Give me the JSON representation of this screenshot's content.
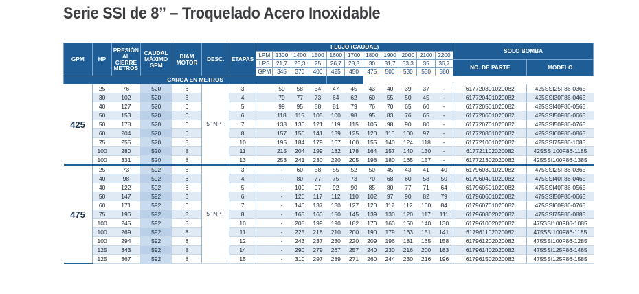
{
  "title": "Serie SSI de 8” – Troquelado Acero Inoxidable",
  "headers": {
    "gpm": "GPM",
    "hp": "HP",
    "presion": "PRESIÓN AL CIERRE METROS",
    "caudal": "CAUDAL MÁXIMO GPM",
    "diam": "DIAM MOTOR",
    "desc": "DESC.",
    "etapas": "ETAPAS",
    "flujo": "FLUJO (CAUDAL)",
    "carga": "CARGA EN METROS",
    "solo_bomba": "SOLO BOMBA",
    "no_parte": "NO. DE PARTE",
    "modelo": "MODELO"
  },
  "flow_rows": [
    {
      "unit": "LPM",
      "values": [
        "1300",
        "1400",
        "1500",
        "1600",
        "1700",
        "1800",
        "1900",
        "2000",
        "2100",
        "2200"
      ]
    },
    {
      "unit": "LPS",
      "values": [
        "21,7",
        "23,3",
        "25",
        "26,7",
        "28,3",
        "30",
        "31,7",
        "33,3",
        "35",
        "36,7"
      ]
    },
    {
      "unit": "GPM",
      "values": [
        "345",
        "370",
        "400",
        "425",
        "450",
        "475",
        "500",
        "530",
        "550",
        "580"
      ]
    }
  ],
  "groups": [
    {
      "gpm": "425",
      "desc": "5” NPT",
      "rows": [
        {
          "hp": "25",
          "presion": "76",
          "caudal": "520",
          "diam": "6",
          "etapas": "3",
          "carga": [
            "59",
            "58",
            "54",
            "47",
            "45",
            "43",
            "40",
            "39",
            "37",
            "-"
          ],
          "parte": "617720301020082",
          "modelo": "425SSI25F86-0365"
        },
        {
          "hp": "30",
          "presion": "102",
          "caudal": "520",
          "diam": "6",
          "etapas": "4",
          "carga": [
            "79",
            "77",
            "73",
            "64",
            "62",
            "60",
            "55",
            "50",
            "45",
            "-"
          ],
          "parte": "617720401020082",
          "modelo": "425SSI30F86-0465"
        },
        {
          "hp": "40",
          "presion": "127",
          "caudal": "520",
          "diam": "6",
          "etapas": "5",
          "carga": [
            "99",
            "95",
            "88",
            "81",
            "79",
            "76",
            "70",
            "65",
            "60",
            "-"
          ],
          "parte": "617720501020082",
          "modelo": "425SSI40F86-0565"
        },
        {
          "hp": "50",
          "presion": "153",
          "caudal": "520",
          "diam": "6",
          "etapas": "6",
          "carga": [
            "118",
            "115",
            "105",
            "100",
            "98",
            "95",
            "83",
            "76",
            "65",
            "-"
          ],
          "parte": "617720601020082",
          "modelo": "425SSI50F86-0665"
        },
        {
          "hp": "50",
          "presion": "178",
          "caudal": "520",
          "diam": "6",
          "etapas": "7",
          "carga": [
            "138",
            "130",
            "121",
            "119",
            "115",
            "105",
            "98",
            "90",
            "80",
            "-"
          ],
          "parte": "617720701020082",
          "modelo": "425SSI50F86-0765"
        },
        {
          "hp": "60",
          "presion": "204",
          "caudal": "520",
          "diam": "6",
          "etapas": "8",
          "carga": [
            "157",
            "150",
            "141",
            "139",
            "125",
            "120",
            "110",
            "100",
            "97",
            "-"
          ],
          "parte": "617720801020082",
          "modelo": "425SSI60F86-0865"
        },
        {
          "hp": "75",
          "presion": "255",
          "caudal": "520",
          "diam": "8",
          "etapas": "10",
          "carga": [
            "195",
            "184",
            "179",
            "167",
            "160",
            "155",
            "140",
            "124",
            "118",
            "-"
          ],
          "parte": "617721001020082",
          "modelo": "425SSI75F86-1085"
        },
        {
          "hp": "100",
          "presion": "280",
          "caudal": "520",
          "diam": "8",
          "etapas": "11",
          "carga": [
            "215",
            "204",
            "199",
            "182",
            "178",
            "164",
            "157",
            "140",
            "130",
            "-"
          ],
          "parte": "617721102020082",
          "modelo": "425SSI100F86-1185"
        },
        {
          "hp": "100",
          "presion": "331",
          "caudal": "520",
          "diam": "8",
          "etapas": "13",
          "carga": [
            "253",
            "241",
            "230",
            "220",
            "205",
            "198",
            "180",
            "165",
            "157",
            "-"
          ],
          "parte": "617721302020082",
          "modelo": "425SSI100F86-1385"
        }
      ]
    },
    {
      "gpm": "475",
      "desc": "5” NPT",
      "rows": [
        {
          "hp": "25",
          "presion": "73",
          "caudal": "592",
          "diam": "6",
          "etapas": "3",
          "carga": [
            "-",
            "60",
            "58",
            "55",
            "52",
            "50",
            "45",
            "43",
            "41",
            "40"
          ],
          "parte": "617960301020082",
          "modelo": "475SSI25F86-0365"
        },
        {
          "hp": "40",
          "presion": "98",
          "caudal": "592",
          "diam": "6",
          "etapas": "4",
          "carga": [
            "-",
            "80",
            "77",
            "75",
            "73",
            "70",
            "68",
            "60",
            "58",
            "50"
          ],
          "parte": "617960401020082",
          "modelo": "475SSI40F86-0465"
        },
        {
          "hp": "40",
          "presion": "122",
          "caudal": "592",
          "diam": "6",
          "etapas": "5",
          "carga": [
            "-",
            "100",
            "97",
            "92",
            "90",
            "85",
            "80",
            "77",
            "71",
            "64"
          ],
          "parte": "617960501020082",
          "modelo": "475SSI40F86-0565"
        },
        {
          "hp": "50",
          "presion": "147",
          "caudal": "592",
          "diam": "6",
          "etapas": "6",
          "carga": [
            "-",
            "120",
            "117",
            "112",
            "110",
            "102",
            "97",
            "90",
            "82",
            "79"
          ],
          "parte": "617960601020082",
          "modelo": "475SSI50F86-0665"
        },
        {
          "hp": "60",
          "presion": "171",
          "caudal": "592",
          "diam": "6",
          "etapas": "7",
          "carga": [
            "-",
            "140",
            "137",
            "130",
            "127",
            "120",
            "117",
            "112",
            "100",
            "84"
          ],
          "parte": "617960701020082",
          "modelo": "475SSI60F86-0765"
        },
        {
          "hp": "75",
          "presion": "196",
          "caudal": "592",
          "diam": "8",
          "etapas": "8",
          "carga": [
            "-",
            "163",
            "160",
            "150",
            "145",
            "139",
            "130",
            "120",
            "117",
            "111"
          ],
          "parte": "617960802020082",
          "modelo": "475SSI75F86-0885"
        },
        {
          "hp": "100",
          "presion": "245",
          "caudal": "592",
          "diam": "8",
          "etapas": "10",
          "carga": [
            "-",
            "205",
            "199",
            "190",
            "182",
            "170",
            "160",
            "150",
            "140",
            "130"
          ],
          "parte": "617961002020082",
          "modelo": "475SSI100F86-1085"
        },
        {
          "hp": "100",
          "presion": "269",
          "caudal": "592",
          "diam": "8",
          "etapas": "11",
          "carga": [
            "-",
            "225",
            "218",
            "210",
            "200",
            "190",
            "179",
            "163",
            "151",
            "141"
          ],
          "parte": "617961102020082",
          "modelo": "475SSI100F86-1185"
        },
        {
          "hp": "100",
          "presion": "294",
          "caudal": "592",
          "diam": "8",
          "etapas": "12",
          "carga": [
            "-",
            "243",
            "237",
            "230",
            "220",
            "209",
            "196",
            "181",
            "165",
            "158"
          ],
          "parte": "617961202020082",
          "modelo": "475SSI100F86-1285"
        },
        {
          "hp": "125",
          "presion": "343",
          "caudal": "592",
          "diam": "8",
          "etapas": "14",
          "carga": [
            "-",
            "290",
            "279",
            "267",
            "257",
            "240",
            "230",
            "216",
            "200",
            "183"
          ],
          "parte": "617961402020082",
          "modelo": "475SSI125F86-1485"
        },
        {
          "hp": "125",
          "presion": "367",
          "caudal": "592",
          "diam": "8",
          "etapas": "15",
          "carga": [
            "-",
            "310",
            "297",
            "289",
            "271",
            "260",
            "244",
            "230",
            "216",
            "196"
          ],
          "parte": "617961502020082",
          "modelo": "475SSI125F86-1585"
        }
      ]
    }
  ]
}
